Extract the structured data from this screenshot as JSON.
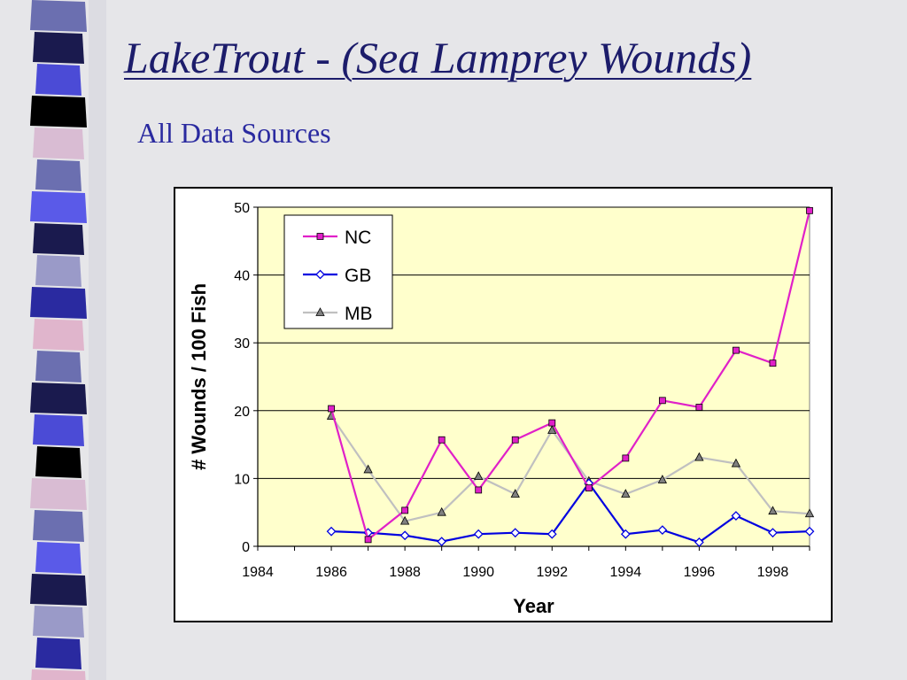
{
  "slide": {
    "title": "LakeTrout - (Sea Lamprey Wounds)",
    "subtitle": "All Data Sources",
    "background": "#e6e6e9",
    "title_color": "#1c1c6b",
    "subtitle_color": "#2a2aa0",
    "stripe_colors": [
      "#6b6fb0",
      "#1a1a4e",
      "#4b4bd6",
      "#000000",
      "#d9bcd3",
      "#6b6fb0",
      "#5a5ae8",
      "#1a1a4e",
      "#9a9ac8",
      "#2a2aa0",
      "#e0b5cc"
    ]
  },
  "chart_data": {
    "type": "line",
    "title": "",
    "xlabel": "Year",
    "ylabel": "# Wounds / 100 Fish",
    "xlim": [
      1984,
      1999
    ],
    "ylim": [
      0,
      50
    ],
    "x_ticks": [
      1984,
      1986,
      1988,
      1990,
      1992,
      1994,
      1996,
      1998
    ],
    "y_ticks": [
      0,
      10,
      20,
      30,
      40,
      50
    ],
    "grid": "horizontal",
    "plot_background": "#ffffcc",
    "legend_position": "top-left",
    "series": [
      {
        "name": "NC",
        "color": "#e020c8",
        "marker": "square",
        "x": [
          1986,
          1987,
          1988,
          1989,
          1990,
          1991,
          1992,
          1993,
          1994,
          1995,
          1996,
          1997,
          1998,
          1999
        ],
        "values": [
          20.3,
          1.0,
          5.3,
          15.7,
          8.3,
          15.7,
          18.2,
          8.6,
          13.0,
          21.5,
          20.5,
          28.9,
          27.0,
          49.5
        ]
      },
      {
        "name": "GB",
        "color": "#0000e0",
        "marker": "diamond",
        "x": [
          1986,
          1987,
          1988,
          1989,
          1990,
          1991,
          1992,
          1993,
          1994,
          1995,
          1996,
          1997,
          1998,
          1999
        ],
        "values": [
          2.2,
          2.0,
          1.6,
          0.7,
          1.8,
          2.0,
          1.8,
          9.3,
          1.8,
          2.4,
          0.6,
          4.5,
          2.0,
          2.2
        ]
      },
      {
        "name": "MB",
        "color": "#c0c0c0",
        "marker": "triangle",
        "x": [
          1986,
          1987,
          1988,
          1989,
          1990,
          1991,
          1992,
          1993,
          1994,
          1995,
          1996,
          1997,
          1998,
          1999
        ],
        "values": [
          19.2,
          11.3,
          3.7,
          5.0,
          10.3,
          7.7,
          17.1,
          9.6,
          7.7,
          9.8,
          13.1,
          12.2,
          5.2,
          4.8
        ]
      }
    ]
  }
}
